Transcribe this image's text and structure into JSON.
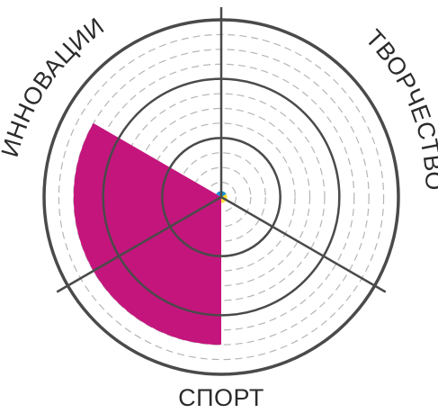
{
  "chart_data": {
    "type": "polar-area",
    "title": "",
    "categories": [
      "ИННОВАЦИИ",
      "ТВОРЧЕСТВО",
      "СПОРТ"
    ],
    "values": [
      0.2,
      0.2,
      5.0
    ],
    "scale_max": 6,
    "solid_rings": [
      2,
      4,
      6
    ],
    "dashed_rings_per_unit": 2,
    "grid": true,
    "legend": "none",
    "colors": {
      "ИННОВАЦИИ": "#1b8fd0",
      "ТВОРЧЕСТВО": "#ffe03a",
      "СПОРТ": "#c4157d",
      "grid_solid": "#4a4a4a",
      "grid_dashed": "#b5b5b5",
      "label": "#2b2b2b"
    }
  }
}
